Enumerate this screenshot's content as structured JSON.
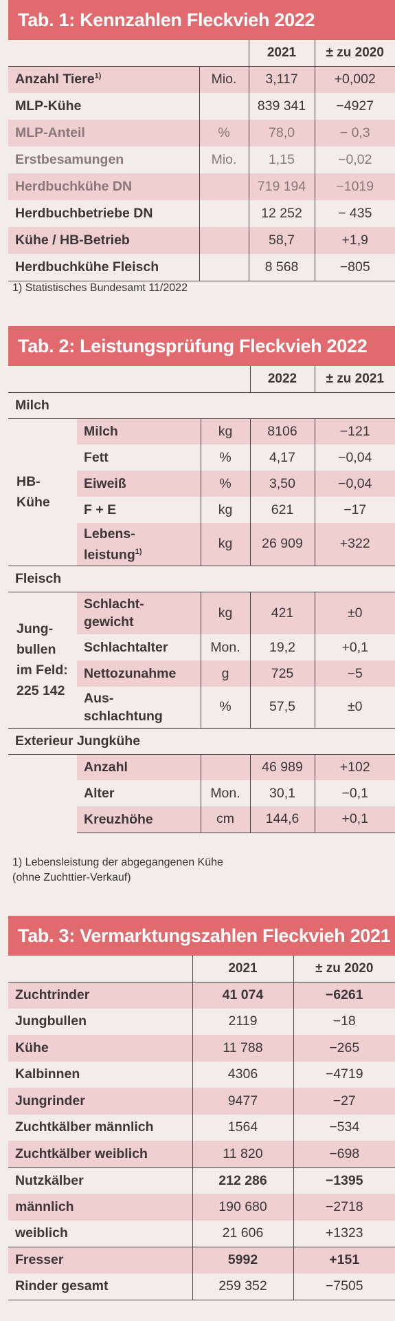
{
  "tab1": {
    "title": "Tab. 1: Kennzahlen Fleckvieh 2022",
    "col_year": "2021",
    "col_diff": "± zu 2020",
    "rows": [
      {
        "label": "Anzahl Tiere",
        "sup": "1)",
        "unit": "Mio.",
        "value": "3,117",
        "diff": "+0,002"
      },
      {
        "label": "MLP-Kühe",
        "sup": "",
        "unit": "",
        "value": "839 341",
        "diff": "−4927"
      },
      {
        "label": "MLP-Anteil",
        "sup": "",
        "unit": "%",
        "value": "78,0",
        "diff": "− 0,3"
      },
      {
        "label": "Erstbesamungen",
        "sup": "",
        "unit": "Mio.",
        "value": "1,15",
        "diff": "−0,02"
      },
      {
        "label": "Herdbuchkühe DN",
        "sup": "",
        "unit": "",
        "value": "719 194",
        "diff": "−1019"
      },
      {
        "label": "Herdbuchbetriebe DN",
        "sup": "",
        "unit": "",
        "value": "12 252",
        "diff": "− 435"
      },
      {
        "label": "Kühe / HB-Betrieb",
        "sup": "",
        "unit": "",
        "value": "58,7",
        "diff": "+1,9"
      },
      {
        "label": "Herdbuchkühe Fleisch",
        "sup": "",
        "unit": "",
        "value": "8 568",
        "diff": "−805"
      }
    ],
    "footnote": "1) Statistisches Bundesamt 11/2022"
  },
  "tab2": {
    "title": "Tab. 2: Leistungsprüfung Fleckvieh 2022",
    "col_year": "2022",
    "col_diff": "± zu 2021",
    "milch": {
      "section": "Milch",
      "group": "HB-\nKühe",
      "rows": [
        {
          "label": "Milch",
          "unit": "kg",
          "value": "8106",
          "diff": "−121"
        },
        {
          "label": "Fett",
          "unit": "%",
          "value": "4,17",
          "diff": "−0,04"
        },
        {
          "label": "Eiweiß",
          "unit": "%",
          "value": "3,50",
          "diff": "−0,04"
        },
        {
          "label": "F + E",
          "unit": "kg",
          "value": "621",
          "diff": "−17"
        },
        {
          "label": "Lebens-\nleistung",
          "sup": "1)",
          "unit": "kg",
          "value": "26 909",
          "diff": "+322"
        }
      ]
    },
    "fleisch": {
      "section": "Fleisch",
      "group": "Jung-\nbullen\nim Feld:\n225 142",
      "rows": [
        {
          "label": "Schlacht-\ngewicht",
          "unit": "kg",
          "value": "421",
          "diff": "±0"
        },
        {
          "label": "Schlachtalter",
          "unit": "Mon.",
          "value": "19,2",
          "diff": "+0,1"
        },
        {
          "label": "Nettozunahme",
          "unit": "g",
          "value": "725",
          "diff": "−5"
        },
        {
          "label": "Aus-\nschlachtung",
          "unit": "%",
          "value": "57,5",
          "diff": "±0"
        }
      ]
    },
    "exterieur": {
      "section": "Exterieur Jungkühe",
      "rows": [
        {
          "label": "Anzahl",
          "unit": "",
          "value": "46 989",
          "diff": "+102"
        },
        {
          "label": "Alter",
          "unit": "Mon.",
          "value": "30,1",
          "diff": "−0,1"
        },
        {
          "label": "Kreuzhöhe",
          "unit": "cm",
          "value": "144,6",
          "diff": "+0,1"
        }
      ]
    },
    "footnote_1": "1) Lebensleistung der abgegangenen Kühe",
    "footnote_2": "(ohne Zuchttier-Verkauf)"
  },
  "tab3": {
    "title": "Tab. 3: Vermarktungszahlen Fleckvieh 2021",
    "col_year": "2021",
    "col_diff": "± zu 2020",
    "rows": [
      {
        "label": "Zuchtrinder",
        "value": "41 074",
        "diff": "−6261",
        "bold": true
      },
      {
        "label": "Jungbullen",
        "value": "2119",
        "diff": "−18",
        "bold": false
      },
      {
        "label": "Kühe",
        "value": "11 788",
        "diff": "−265",
        "bold": false
      },
      {
        "label": "Kalbinnen",
        "value": "4306",
        "diff": "−4719",
        "bold": false
      },
      {
        "label": "Jungrinder",
        "value": "9477",
        "diff": "−27",
        "bold": false
      },
      {
        "label": "Zuchtkälber männlich",
        "value": "1564",
        "diff": "−534",
        "bold": false
      },
      {
        "label": "Zuchtkälber weiblich",
        "value": "11 820",
        "diff": "−698",
        "bold": false
      },
      {
        "label": "Nutzkälber",
        "value": "212 286",
        "diff": "−1395",
        "bold": true
      },
      {
        "label": "männlich",
        "value": "190 680",
        "diff": "−2718",
        "bold": false
      },
      {
        "label": "weiblich",
        "value": "21 606",
        "diff": "+1323",
        "bold": false
      },
      {
        "label": "Fresser",
        "value": "5992",
        "diff": "+151",
        "bold": true
      },
      {
        "label": "Rinder gesamt",
        "value": "259 352",
        "diff": "−7505",
        "bold": false
      }
    ]
  }
}
